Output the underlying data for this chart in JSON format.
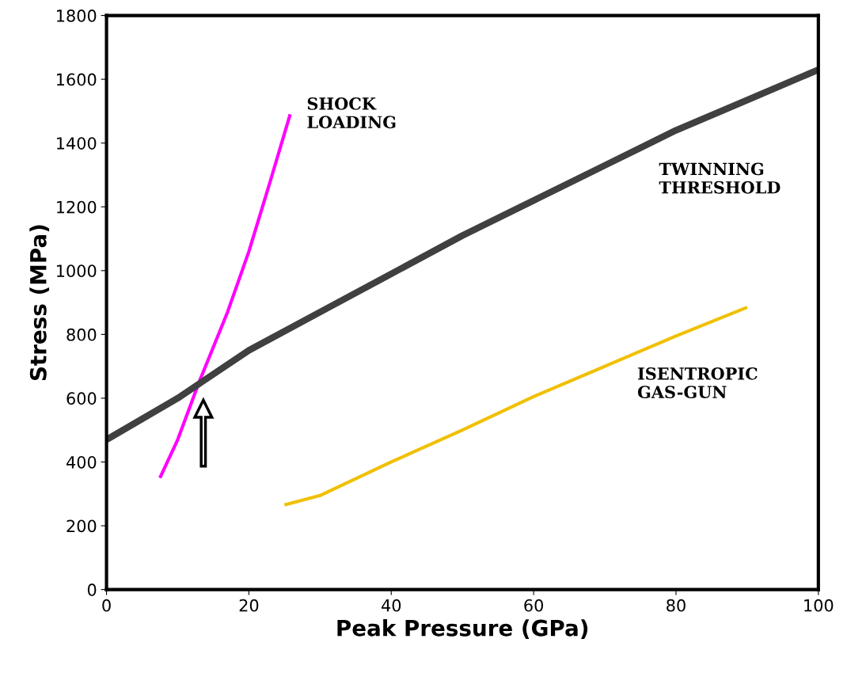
{
  "chart_data": {
    "type": "line",
    "xlabel": "Peak Pressure (GPa)",
    "ylabel": "Stress (MPa)",
    "xlim": [
      0,
      100
    ],
    "xticks": [
      0,
      20,
      40,
      60,
      80,
      100
    ],
    "ylim": [
      0,
      1800
    ],
    "yticks": [
      0,
      200,
      400,
      600,
      800,
      1000,
      1200,
      1400,
      1600,
      1800
    ],
    "grid": false,
    "legend": false,
    "marker": "none",
    "line_style": "solid",
    "series": [
      {
        "name": "SHOCK\nLOADING",
        "color": "#ff00ff",
        "x": [
          7.5,
          10,
          13,
          15,
          17,
          20,
          23,
          25.8
        ],
        "values": [
          350,
          470,
          650,
          760,
          870,
          1060,
          1280,
          1490
        ]
      },
      {
        "name": "TWINNING\nTHRESHOLD",
        "color": "#404040",
        "x": [
          0,
          10,
          20,
          30,
          40,
          50,
          60,
          70,
          75,
          80,
          90,
          100
        ],
        "values": [
          470,
          600,
          750,
          870,
          990,
          1110,
          1220,
          1330,
          1385,
          1440,
          1535,
          1630
        ]
      },
      {
        "name": "ISENTROPIC\nGAS-GUN",
        "color": "#f0c000",
        "x": [
          25,
          30,
          40,
          50,
          60,
          70,
          80,
          90
        ],
        "values": [
          265,
          295,
          400,
          500,
          605,
          700,
          795,
          885
        ]
      }
    ]
  }
}
